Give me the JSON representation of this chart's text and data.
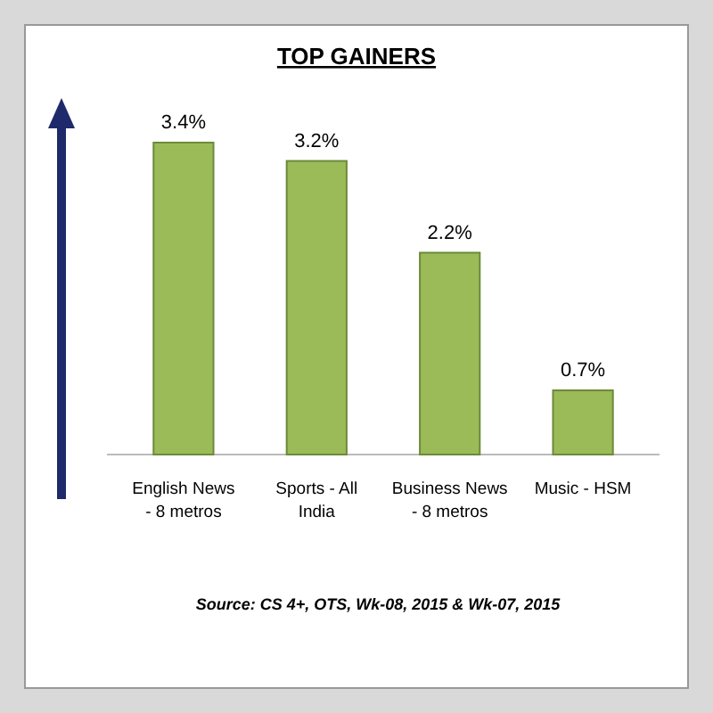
{
  "chart_data": {
    "type": "bar",
    "title": "TOP GAINERS",
    "categories": [
      "English News - 8 metros",
      "Sports - All India",
      "Business News - 8 metros",
      "Music - HSM"
    ],
    "values": [
      3.4,
      3.2,
      2.2,
      0.7
    ],
    "value_labels": [
      "3.4%",
      "3.2%",
      "2.2%",
      "0.7%"
    ],
    "color": "#9bbb59",
    "annotations": [
      "Source: CS 4+, OTS, Wk-08, 2015 & Wk-07, 2015"
    ]
  }
}
